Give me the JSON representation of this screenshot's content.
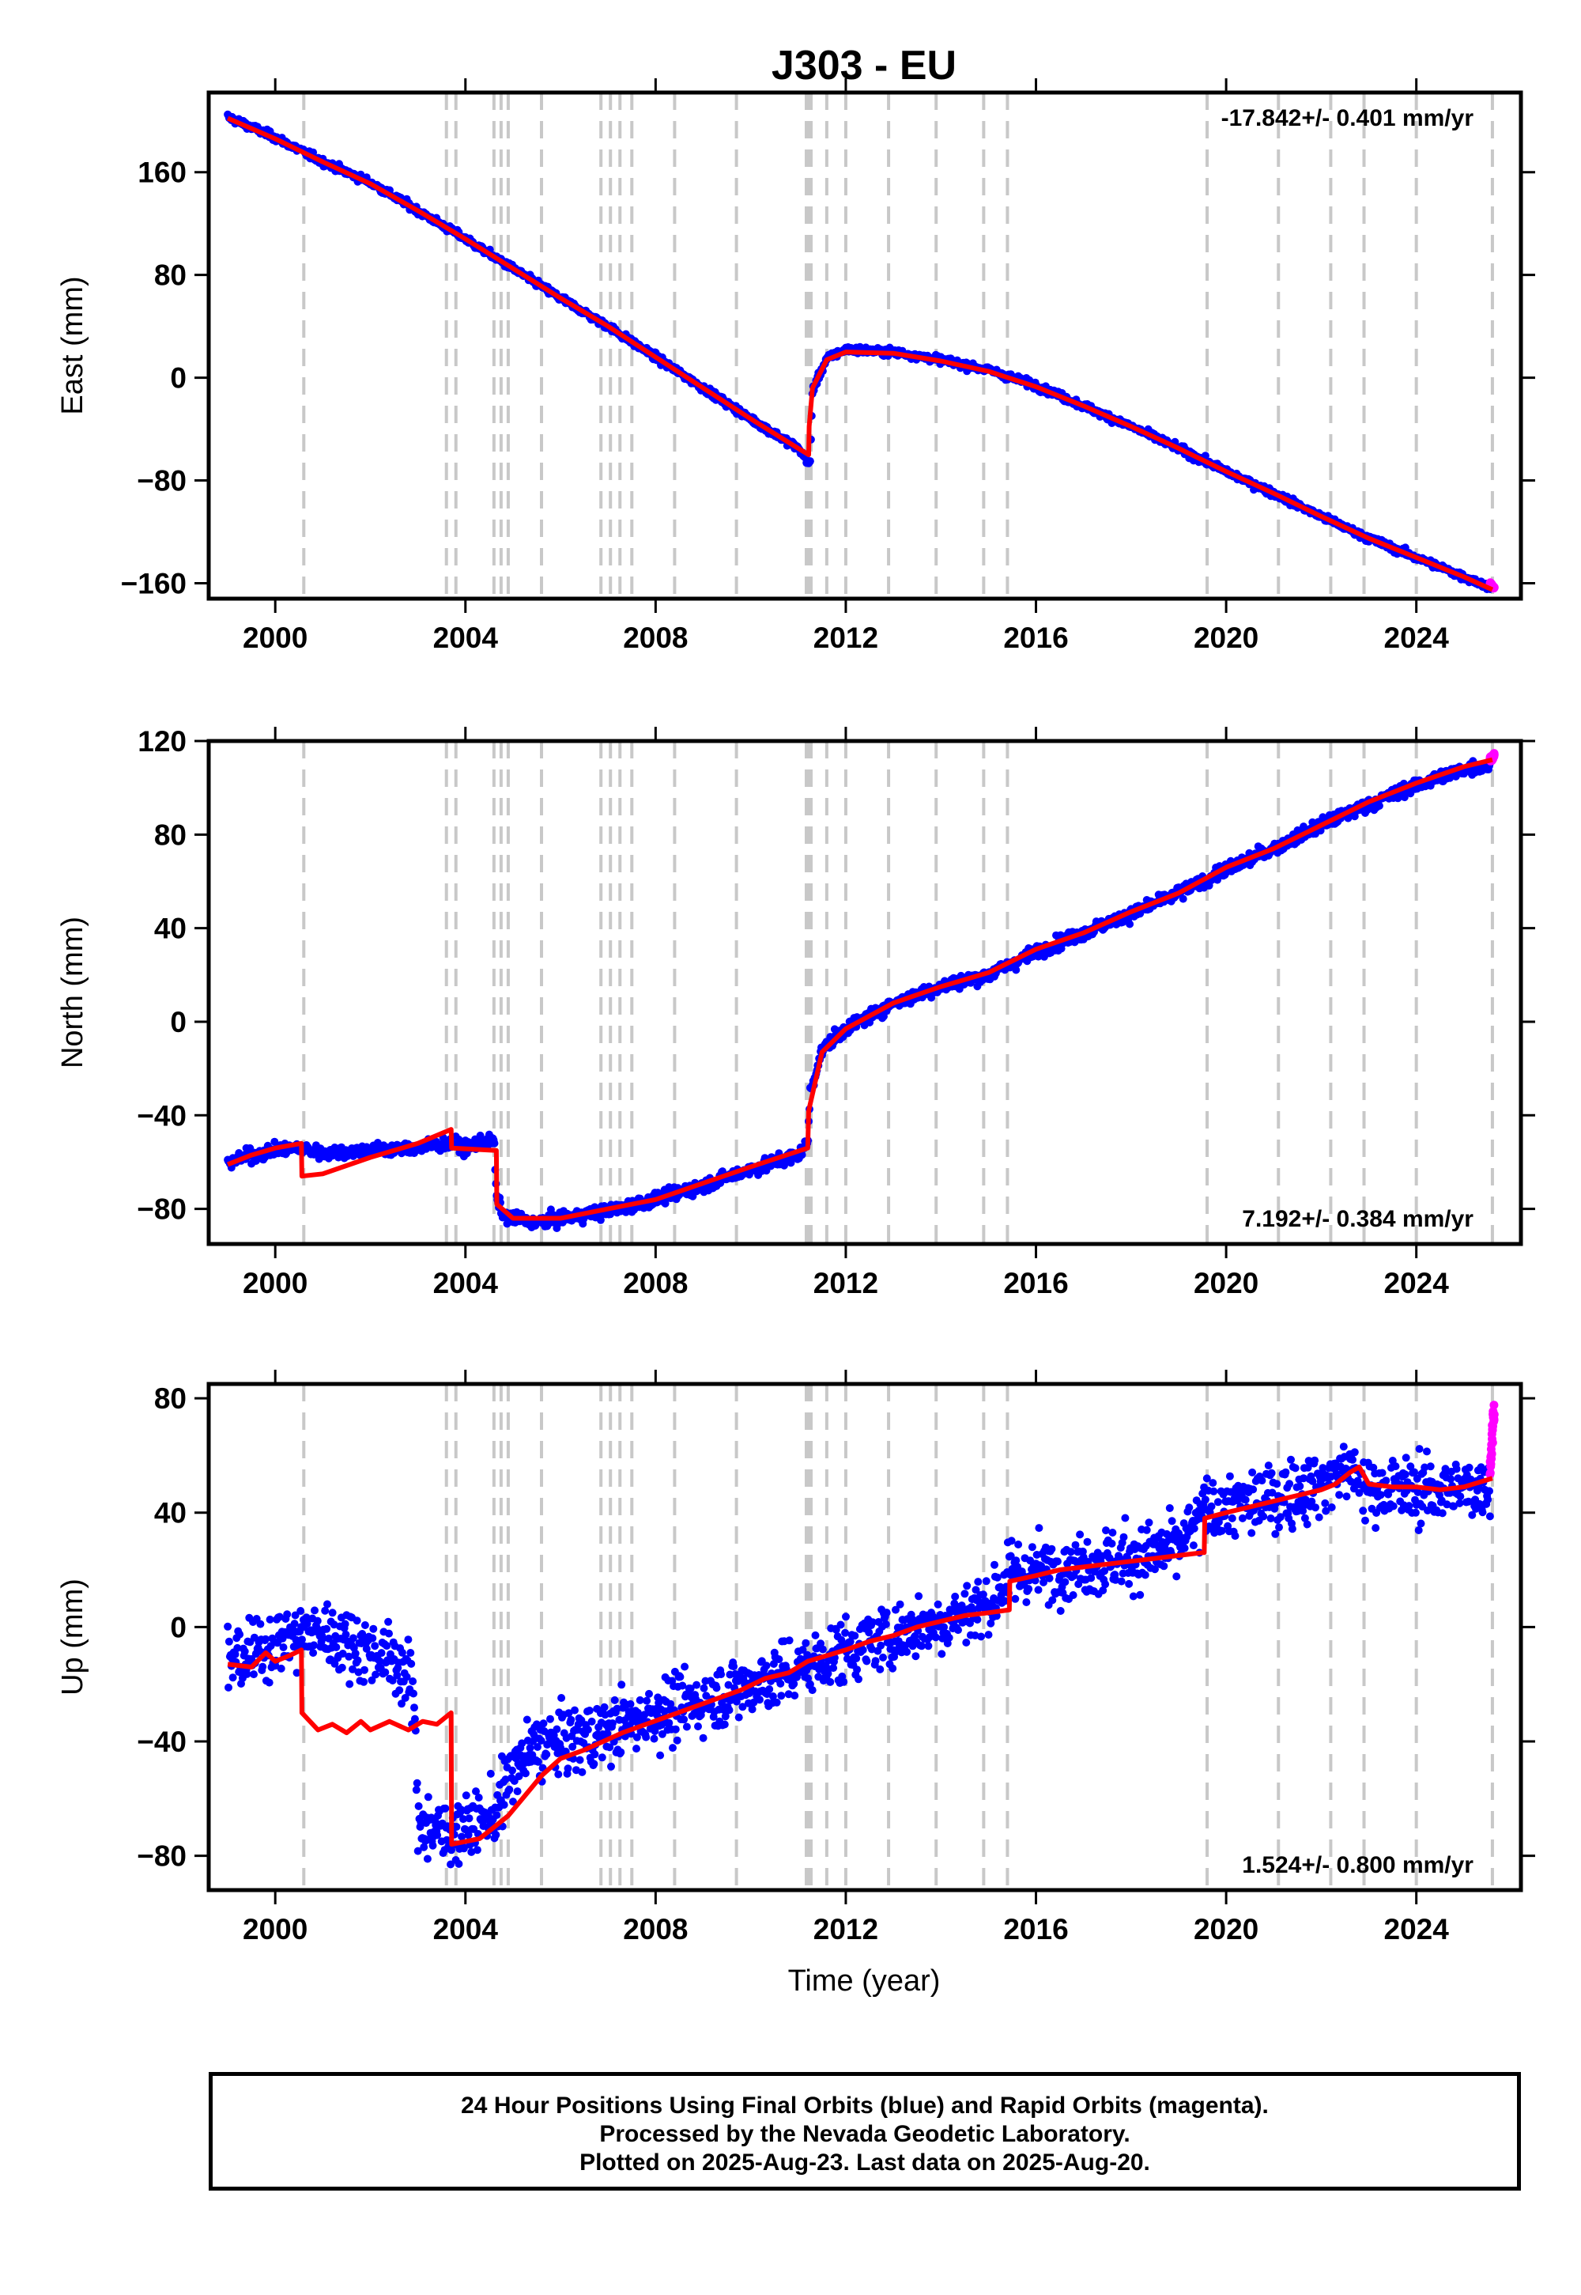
{
  "chart_data": [
    {
      "type": "scatter",
      "title": "J303 - EU",
      "xlabel": "",
      "ylabel": "East (mm)",
      "xlim": [
        1998.6,
        2026.2
      ],
      "ylim": [
        -172,
        222
      ],
      "xticks": [
        2000,
        2004,
        2008,
        2012,
        2016,
        2020,
        2024
      ],
      "yticks": [
        -160,
        -80,
        0,
        80,
        160
      ],
      "rate_text": "-17.842+/- 0.401 mm/yr",
      "rate_position": "top-right",
      "grid": false,
      "legend": "none",
      "noise_mm": 2.0,
      "series": [
        {
          "name": "final",
          "color": "#0000ff",
          "x": [
            1999.0,
            2000.0,
            2001.0,
            2002.0,
            2003.0,
            2004.0,
            2005.0,
            2006.0,
            2007.0,
            2008.0,
            2009.0,
            2010.0,
            2011.0,
            2011.25,
            2011.3,
            2011.6,
            2012.0,
            2013.0,
            2014.0,
            2015.0,
            2016.0,
            2017.0,
            2018.0,
            2019.0,
            2020.0,
            2021.0,
            2022.0,
            2023.0,
            2024.0,
            2025.0,
            2025.55
          ],
          "y": [
            203,
            187,
            168,
            152,
            130,
            108,
            85,
            62,
            40,
            16,
            -8,
            -32,
            -55,
            -68,
            -10,
            15,
            22,
            20,
            14,
            6,
            -6,
            -22,
            -38,
            -55,
            -73,
            -90,
            -108,
            -125,
            -140,
            -155,
            -163
          ]
        },
        {
          "name": "rapid",
          "color": "#ff00ff",
          "x": [
            2025.55,
            2025.64
          ],
          "y": [
            -160,
            -164
          ]
        },
        {
          "name": "model",
          "color": "#ff0000",
          "x": [
            1999.0,
            2000.0,
            2001.0,
            2002.0,
            2003.0,
            2004.0,
            2005.0,
            2006.0,
            2007.0,
            2008.0,
            2009.0,
            2010.0,
            2011.0,
            2011.22,
            2011.23,
            2011.3,
            2011.6,
            2012.0,
            2013.0,
            2014.0,
            2015.0,
            2016.0,
            2017.0,
            2018.0,
            2019.0,
            2020.0,
            2021.0,
            2022.0,
            2023.0,
            2024.0,
            2025.0,
            2025.6
          ],
          "y": [
            202,
            186,
            168,
            151,
            130,
            108,
            85,
            62,
            40,
            16,
            -8,
            -32,
            -55,
            -60,
            -38,
            -8,
            14,
            20,
            19,
            13,
            5,
            -7,
            -22,
            -38,
            -55,
            -73,
            -90,
            -108,
            -125,
            -140,
            -155,
            -165
          ]
        }
      ]
    },
    {
      "type": "scatter",
      "title": "",
      "xlabel": "",
      "ylabel": "North (mm)",
      "xlim": [
        1998.6,
        2026.2
      ],
      "ylim": [
        -95,
        120
      ],
      "xticks": [
        2000,
        2004,
        2008,
        2012,
        2016,
        2020,
        2024
      ],
      "yticks": [
        -80,
        -40,
        0,
        40,
        80,
        120
      ],
      "rate_text": "7.192+/- 0.384 mm/yr",
      "rate_position": "bottom-right",
      "grid": false,
      "legend": "none",
      "noise_mm": 2.0,
      "series": [
        {
          "name": "final",
          "color": "#0000ff",
          "x": [
            1999.0,
            1999.5,
            2000.0,
            2000.5,
            2001.0,
            2002.0,
            2003.0,
            2003.7,
            2004.0,
            2004.6,
            2004.65,
            2004.8,
            2005.5,
            2006.0,
            2007.0,
            2008.0,
            2009.0,
            2010.0,
            2011.0,
            2011.2,
            2011.25,
            2011.5,
            2012.0,
            2013.0,
            2014.0,
            2015.0,
            2016.0,
            2017.0,
            2018.0,
            2019.0,
            2020.0,
            2021.0,
            2022.0,
            2023.0,
            2024.0,
            2025.0,
            2025.55
          ],
          "y": [
            -60,
            -57,
            -55,
            -54,
            -56,
            -55,
            -54,
            -52,
            -54,
            -50,
            -75,
            -83,
            -86,
            -84,
            -81,
            -76,
            -70,
            -63,
            -57,
            -52,
            -30,
            -12,
            -3,
            8,
            15,
            20,
            30,
            38,
            46,
            55,
            65,
            74,
            84,
            93,
            101,
            108,
            110
          ]
        },
        {
          "name": "rapid",
          "color": "#ff00ff",
          "x": [
            2025.55,
            2025.64
          ],
          "y": [
            112,
            114
          ]
        },
        {
          "name": "model",
          "color": "#ff0000",
          "x": [
            1999.0,
            1999.5,
            2000.0,
            2000.55,
            2000.56,
            2001.0,
            2002.0,
            2003.0,
            2003.7,
            2003.71,
            2004.65,
            2004.66,
            2005.0,
            2006.0,
            2007.0,
            2008.0,
            2009.0,
            2010.0,
            2011.2,
            2011.22,
            2011.5,
            2012.0,
            2013.0,
            2014.0,
            2015.0,
            2016.0,
            2017.0,
            2018.0,
            2019.0,
            2020.0,
            2021.0,
            2022.0,
            2023.0,
            2024.0,
            2025.0,
            2025.6
          ],
          "y": [
            -61,
            -57,
            -54,
            -52,
            -66,
            -65,
            -58,
            -52,
            -46,
            -54,
            -55,
            -78,
            -84,
            -84,
            -80,
            -76,
            -69,
            -62,
            -54,
            -38,
            -13,
            -3,
            8,
            15,
            21,
            31,
            38,
            47,
            55,
            66,
            74,
            84,
            94,
            102,
            109,
            112
          ]
        }
      ]
    },
    {
      "type": "scatter",
      "title": "",
      "xlabel": "Time (year)",
      "ylabel": "Up (mm)",
      "xlim": [
        1998.6,
        2026.2
      ],
      "ylim": [
        -92,
        85
      ],
      "xticks": [
        2000,
        2004,
        2008,
        2012,
        2016,
        2020,
        2024
      ],
      "yticks": [
        -80,
        -40,
        0,
        40,
        80
      ],
      "rate_text": "1.524+/- 0.800 mm/yr",
      "rate_position": "bottom-right",
      "grid": false,
      "legend": "none",
      "noise_mm": 8.0,
      "series": [
        {
          "name": "final",
          "color": "#0000ff",
          "x": [
            1999.0,
            1999.5,
            2000.0,
            2000.5,
            2001.0,
            2001.5,
            2002.0,
            2002.5,
            2002.9,
            2003.0,
            2003.5,
            2004.0,
            2004.6,
            2005.0,
            2005.5,
            2006.0,
            2006.8,
            2007.0,
            2008.0,
            2009.0,
            2010.0,
            2011.0,
            2012.0,
            2013.0,
            2014.0,
            2015.0,
            2015.45,
            2016.0,
            2017.0,
            2018.0,
            2019.0,
            2019.55,
            2020.0,
            2021.0,
            2022.0,
            2022.5,
            2023.0,
            2024.0,
            2025.0,
            2025.55
          ],
          "y": [
            -12,
            -10,
            -5,
            -3,
            -2,
            -5,
            -8,
            -12,
            -20,
            -68,
            -72,
            -70,
            -66,
            -50,
            -42,
            -40,
            -38,
            -36,
            -30,
            -26,
            -20,
            -15,
            -8,
            -3,
            2,
            8,
            18,
            20,
            22,
            24,
            28,
            40,
            42,
            45,
            50,
            56,
            48,
            48,
            48,
            50
          ]
        },
        {
          "name": "rapid",
          "color": "#ff00ff",
          "x": [
            2025.55,
            2025.58,
            2025.6,
            2025.62,
            2025.64
          ],
          "y": [
            55,
            62,
            68,
            74,
            78
          ]
        },
        {
          "name": "model",
          "color": "#ff0000",
          "x": [
            1999.0,
            1999.5,
            1999.8,
            2000.0,
            2000.3,
            2000.55,
            2000.56,
            2000.9,
            2001.2,
            2001.5,
            2001.8,
            2002.0,
            2002.4,
            2002.8,
            2003.1,
            2003.4,
            2003.7,
            2003.71,
            2004.3,
            2004.6,
            2004.9,
            2005.2,
            2005.6,
            2006.0,
            2006.5,
            2006.9,
            2007.3,
            2007.8,
            2008.3,
            2008.8,
            2009.3,
            2009.8,
            2010.3,
            2010.8,
            2011.2,
            2011.6,
            2012.0,
            2012.5,
            2013.0,
            2013.5,
            2014.0,
            2014.5,
            2015.0,
            2015.44,
            2015.45,
            2016.0,
            2016.5,
            2017.0,
            2017.5,
            2018.0,
            2018.5,
            2019.0,
            2019.5,
            2019.54,
            2019.55,
            2020.0,
            2020.5,
            2021.0,
            2021.5,
            2022.0,
            2022.3,
            2022.6,
            2022.8,
            2023.0,
            2023.5,
            2024.0,
            2024.5,
            2025.0,
            2025.6
          ],
          "y": [
            -13,
            -14,
            -9,
            -12,
            -10,
            -8,
            -30,
            -36,
            -34,
            -37,
            -33,
            -36,
            -33,
            -36,
            -33,
            -34,
            -30,
            -76,
            -74,
            -70,
            -66,
            -60,
            -52,
            -46,
            -43,
            -40,
            -37,
            -34,
            -31,
            -28,
            -25,
            -22,
            -18,
            -16,
            -12,
            -10,
            -8,
            -5,
            -3,
            0,
            2,
            4,
            5,
            6,
            16,
            18,
            20,
            21,
            22,
            23,
            24,
            25,
            26,
            26,
            38,
            40,
            42,
            44,
            46,
            48,
            50,
            54,
            56,
            50,
            49,
            49,
            48,
            49,
            52
          ]
        }
      ]
    }
  ],
  "break_lines_x": [
    2000.6,
    2003.6,
    2003.8,
    2004.6,
    2004.75,
    2004.9,
    2005.6,
    2006.85,
    2007.05,
    2007.25,
    2007.5,
    2008.4,
    2009.7,
    2011.17,
    2011.22,
    2011.27,
    2011.6,
    2012.0,
    2012.9,
    2013.9,
    2014.9,
    2015.4,
    2019.6,
    2021.1,
    2022.2,
    2022.9,
    2024.0,
    2025.6
  ],
  "colors": {
    "final": "#0000ff",
    "rapid": "#ff00ff",
    "model": "#ff0000",
    "break_line": "#c8c8c8"
  },
  "footer": {
    "line1": "24 Hour Positions Using Final Orbits (blue) and Rapid Orbits (magenta).",
    "line2": "Processed by the Nevada Geodetic Laboratory.",
    "line3": "Plotted on 2025-Aug-23. Last data on 2025-Aug-20."
  }
}
